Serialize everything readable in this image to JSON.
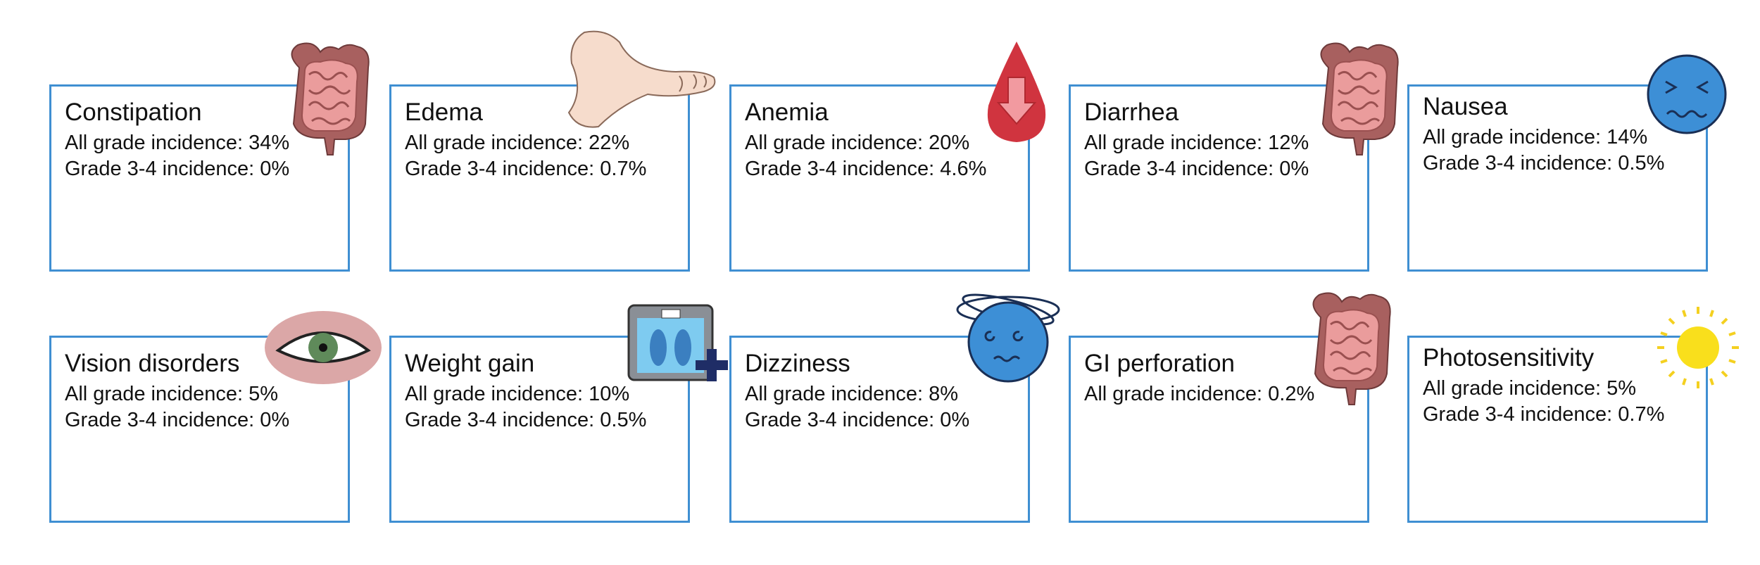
{
  "cards": [
    {
      "title": "Constipation",
      "lines": [
        "All grade incidence: 34%",
        "Grade 3-4 incidence: 0%"
      ]
    },
    {
      "title": "Edema",
      "lines": [
        "All grade incidence: 22%",
        "Grade 3-4 incidence: 0.7%"
      ]
    },
    {
      "title": "Anemia",
      "lines": [
        "All grade incidence: 20%",
        "Grade 3-4 incidence: 4.6%"
      ]
    },
    {
      "title": "Diarrhea",
      "lines": [
        "All grade incidence: 12%",
        "Grade 3-4 incidence: 0%"
      ]
    },
    {
      "title": "Nausea",
      "lines": [
        "All grade incidence: 14%",
        "Grade 3-4 incidence: 0.5%"
      ]
    },
    {
      "title": "Vision disorders",
      "lines": [
        "All grade incidence: 5%",
        "Grade 3-4 incidence: 0%"
      ]
    },
    {
      "title": "Weight gain",
      "lines": [
        "All grade incidence: 10%",
        "Grade 3-4 incidence: 0.5%"
      ]
    },
    {
      "title": "Dizziness",
      "lines": [
        "All grade incidence: 8%",
        "Grade 3-4 incidence: 0%"
      ]
    },
    {
      "title": "GI perforation",
      "lines": [
        "All grade incidence: 0.2%"
      ]
    },
    {
      "title": "Photosensitivity",
      "lines": [
        "All grade incidence: 5%",
        "Grade 3-4 incidence: 0.7%"
      ]
    }
  ]
}
